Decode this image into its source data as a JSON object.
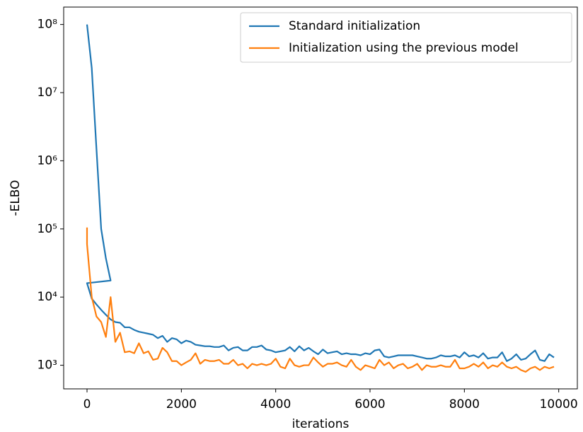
{
  "chart_data": {
    "type": "line",
    "xlabel": "iterations",
    "ylabel": "-ELBO",
    "xlim": [
      -495,
      10395
    ],
    "ylim": [
      450,
      180000000
    ],
    "yscale": "log",
    "xticks": [
      0,
      2000,
      4000,
      6000,
      8000,
      10000
    ],
    "yticks": [
      {
        "value": 1000,
        "label": "10³"
      },
      {
        "value": 10000,
        "label": "10⁴"
      },
      {
        "value": 100000,
        "label": "10⁵"
      },
      {
        "value": 1000000,
        "label": "10⁶"
      },
      {
        "value": 10000000,
        "label": "10⁷"
      },
      {
        "value": 100000000,
        "label": "10⁸"
      }
    ],
    "legend": "upper right",
    "series": [
      {
        "name": "Standard initialization",
        "color": "#1f77b4",
        "x": [
          0,
          100,
          200,
          300,
          400,
          500,
          0,
          100,
          200,
          300,
          400,
          500,
          600,
          700,
          800,
          900,
          1000,
          1100,
          1200,
          1300,
          1400,
          1500,
          1600,
          1700,
          1800,
          1900,
          2000,
          2100,
          2200,
          2300,
          2400,
          2500,
          2600,
          2700,
          2800,
          2900,
          3000,
          3100,
          3200,
          3300,
          3400,
          3500,
          3600,
          3700,
          3800,
          3900,
          4000,
          4100,
          4200,
          4300,
          4400,
          4500,
          4600,
          4700,
          4800,
          4900,
          5000,
          5100,
          5200,
          5300,
          5400,
          5500,
          5600,
          5700,
          5800,
          5900,
          6000,
          6100,
          6200,
          6300,
          6400,
          6500,
          6600,
          6700,
          6800,
          6900,
          7000,
          7100,
          7200,
          7300,
          7400,
          7500,
          7600,
          7700,
          7800,
          7900,
          8000,
          8100,
          8200,
          8300,
          8400,
          8500,
          8600,
          8700,
          8800,
          8900,
          9000,
          9100,
          9200,
          9300,
          9400,
          9500,
          9600,
          9700,
          9800,
          9900
        ],
        "values": [
          100000000,
          23000000,
          1500000,
          100000,
          37000,
          17500,
          16000,
          9500,
          7800,
          6500,
          5500,
          4700,
          4300,
          4200,
          3600,
          3600,
          3300,
          3100,
          3000,
          2900,
          2800,
          2500,
          2700,
          2200,
          2500,
          2400,
          2100,
          2300,
          2200,
          2000,
          1950,
          1900,
          1900,
          1850,
          1850,
          1950,
          1650,
          1800,
          1850,
          1650,
          1650,
          1850,
          1850,
          1950,
          1700,
          1650,
          1550,
          1600,
          1650,
          1850,
          1600,
          1900,
          1650,
          1800,
          1600,
          1450,
          1700,
          1500,
          1550,
          1600,
          1450,
          1500,
          1450,
          1450,
          1400,
          1500,
          1450,
          1650,
          1700,
          1350,
          1300,
          1350,
          1400,
          1400,
          1400,
          1400,
          1350,
          1300,
          1250,
          1250,
          1300,
          1400,
          1350,
          1350,
          1400,
          1300,
          1550,
          1350,
          1400,
          1300,
          1500,
          1250,
          1300,
          1300,
          1550,
          1150,
          1250,
          1450,
          1200,
          1250,
          1450,
          1650,
          1200,
          1150,
          1450,
          1300
        ]
      },
      {
        "name": "Initialization using the previous model",
        "color": "#ff7f0e",
        "x": [
          0,
          0,
          100,
          200,
          300,
          400,
          500,
          600,
          700,
          800,
          900,
          1000,
          1100,
          1200,
          1300,
          1400,
          1500,
          1600,
          1700,
          1800,
          1900,
          2000,
          2100,
          2200,
          2300,
          2400,
          2500,
          2600,
          2700,
          2800,
          2900,
          3000,
          3100,
          3200,
          3300,
          3400,
          3500,
          3600,
          3700,
          3800,
          3900,
          4000,
          4100,
          4200,
          4300,
          4400,
          4500,
          4600,
          4700,
          4800,
          4900,
          5000,
          5100,
          5200,
          5300,
          5400,
          5500,
          5600,
          5700,
          5800,
          5900,
          6000,
          6100,
          6200,
          6300,
          6400,
          6500,
          6600,
          6700,
          6800,
          6900,
          7000,
          7100,
          7200,
          7300,
          7400,
          7500,
          7600,
          7700,
          7800,
          7900,
          8000,
          8100,
          8200,
          8300,
          8400,
          8500,
          8600,
          8700,
          8800,
          8900,
          9000,
          9100,
          9200,
          9300,
          9400,
          9500,
          9600,
          9700,
          9800,
          9900
        ],
        "values": [
          105000,
          60000,
          10000,
          5200,
          4300,
          2600,
          10000,
          2200,
          3000,
          1550,
          1600,
          1500,
          2100,
          1500,
          1600,
          1200,
          1250,
          1800,
          1550,
          1150,
          1150,
          1000,
          1100,
          1200,
          1500,
          1050,
          1200,
          1150,
          1150,
          1200,
          1050,
          1050,
          1200,
          1000,
          1050,
          900,
          1050,
          1000,
          1050,
          1000,
          1050,
          1250,
          950,
          900,
          1250,
          1000,
          950,
          1000,
          1000,
          1300,
          1100,
          950,
          1050,
          1050,
          1100,
          1000,
          950,
          1200,
          950,
          850,
          1000,
          950,
          900,
          1200,
          1000,
          1100,
          900,
          1000,
          1050,
          900,
          950,
          1050,
          850,
          1000,
          950,
          950,
          1000,
          950,
          950,
          1200,
          900,
          900,
          950,
          1050,
          950,
          1100,
          900,
          1000,
          950,
          1100,
          950,
          900,
          950,
          850,
          800,
          900,
          950,
          850,
          950,
          900,
          950
        ]
      }
    ]
  }
}
